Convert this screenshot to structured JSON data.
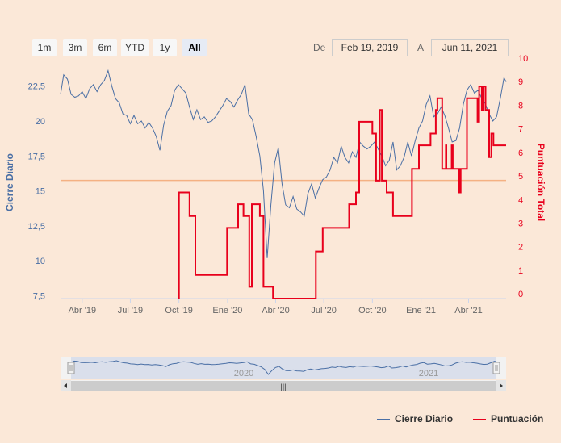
{
  "range_selector": {
    "buttons": [
      "1m",
      "3m",
      "6m",
      "YTD",
      "1y",
      "All"
    ],
    "active": "All",
    "from_label": "De",
    "from_value": "Feb 19, 2019",
    "to_label": "A",
    "to_value": "Jun 11, 2021"
  },
  "navigator": {
    "year_labels": [
      "2020",
      "2021"
    ],
    "scroll_grip": "|||"
  },
  "legend": {
    "items": [
      "Cierre Diario",
      "Puntuación"
    ]
  },
  "colors": {
    "price": "#4a6fa5",
    "score": "#e8001c",
    "reference_line": "#f4b183",
    "background": "#fbe8d8"
  },
  "chart_data": {
    "type": "line",
    "x_range": [
      "2019-02-19",
      "2021-06-11"
    ],
    "x_tick_labels": [
      "Abr '19",
      "Jul '19",
      "Oct '19",
      "Ene '20",
      "Abr '20",
      "Jul '20",
      "Oct '20",
      "Ene '21",
      "Abr '21"
    ],
    "x_tick_dates": [
      "2019-04-01",
      "2019-07-01",
      "2019-10-01",
      "2020-01-01",
      "2020-04-01",
      "2020-07-01",
      "2020-10-01",
      "2021-01-01",
      "2021-04-01"
    ],
    "y_left": {
      "label": "Cierre Diario",
      "range": [
        7.3,
        24.5
      ],
      "ticks": [
        7.5,
        10,
        12.5,
        15,
        17.5,
        20,
        22.5
      ],
      "tick_labels": [
        "7,5",
        "10",
        "12,5",
        "15",
        "17,5",
        "20",
        "22,5"
      ]
    },
    "y_right": {
      "label": "Puntuación Total",
      "range": [
        -0.2,
        10
      ],
      "ticks": [
        0,
        1,
        2,
        3,
        4,
        5,
        6,
        7,
        8,
        9,
        10
      ],
      "tick_labels": [
        "0",
        "1",
        "2",
        "3",
        "4",
        "5",
        "6",
        "7",
        "8",
        "9",
        "10"
      ]
    },
    "reference_line": {
      "axis": "left",
      "value": 15.75
    },
    "grid": false,
    "legend_position": "bottom-right",
    "series": [
      {
        "name": "Cierre Diario",
        "axis": "left",
        "points": [
          [
            "2019-02-19",
            21.9
          ],
          [
            "2019-02-25",
            23.3
          ],
          [
            "2019-03-04",
            23.0
          ],
          [
            "2019-03-11",
            21.9
          ],
          [
            "2019-03-18",
            21.7
          ],
          [
            "2019-03-25",
            21.8
          ],
          [
            "2019-04-01",
            22.1
          ],
          [
            "2019-04-08",
            21.6
          ],
          [
            "2019-04-15",
            22.3
          ],
          [
            "2019-04-22",
            22.6
          ],
          [
            "2019-04-29",
            22.1
          ],
          [
            "2019-05-06",
            22.6
          ],
          [
            "2019-05-13",
            22.9
          ],
          [
            "2019-05-20",
            23.6
          ],
          [
            "2019-05-27",
            22.5
          ],
          [
            "2019-06-03",
            21.6
          ],
          [
            "2019-06-10",
            21.3
          ],
          [
            "2019-06-17",
            20.5
          ],
          [
            "2019-06-24",
            20.4
          ],
          [
            "2019-07-01",
            19.8
          ],
          [
            "2019-07-08",
            20.4
          ],
          [
            "2019-07-15",
            19.8
          ],
          [
            "2019-07-22",
            20.0
          ],
          [
            "2019-07-29",
            19.5
          ],
          [
            "2019-08-05",
            19.9
          ],
          [
            "2019-08-12",
            19.5
          ],
          [
            "2019-08-19",
            18.9
          ],
          [
            "2019-08-26",
            17.9
          ],
          [
            "2019-09-02",
            19.7
          ],
          [
            "2019-09-09",
            20.7
          ],
          [
            "2019-09-16",
            21.1
          ],
          [
            "2019-09-23",
            22.2
          ],
          [
            "2019-09-30",
            22.6
          ],
          [
            "2019-10-07",
            22.3
          ],
          [
            "2019-10-14",
            22.0
          ],
          [
            "2019-10-21",
            21.0
          ],
          [
            "2019-10-28",
            20.1
          ],
          [
            "2019-11-04",
            20.8
          ],
          [
            "2019-11-11",
            20.1
          ],
          [
            "2019-11-18",
            20.3
          ],
          [
            "2019-11-25",
            19.9
          ],
          [
            "2019-12-02",
            20.0
          ],
          [
            "2019-12-09",
            20.3
          ],
          [
            "2019-12-16",
            20.7
          ],
          [
            "2019-12-23",
            21.1
          ],
          [
            "2019-12-30",
            21.6
          ],
          [
            "2020-01-06",
            21.4
          ],
          [
            "2020-01-13",
            21.0
          ],
          [
            "2020-01-20",
            21.5
          ],
          [
            "2020-01-27",
            21.9
          ],
          [
            "2020-02-03",
            22.6
          ],
          [
            "2020-02-10",
            20.5
          ],
          [
            "2020-02-17",
            20.1
          ],
          [
            "2020-02-24",
            18.9
          ],
          [
            "2020-03-02",
            17.5
          ],
          [
            "2020-03-09",
            15.0
          ],
          [
            "2020-03-16",
            10.2
          ],
          [
            "2020-03-23",
            14.0
          ],
          [
            "2020-03-30",
            17.0
          ],
          [
            "2020-04-06",
            18.1
          ],
          [
            "2020-04-13",
            15.5
          ],
          [
            "2020-04-20",
            14.0
          ],
          [
            "2020-04-27",
            13.8
          ],
          [
            "2020-05-04",
            14.6
          ],
          [
            "2020-05-11",
            13.7
          ],
          [
            "2020-05-18",
            13.5
          ],
          [
            "2020-05-25",
            13.2
          ],
          [
            "2020-06-01",
            14.8
          ],
          [
            "2020-06-08",
            15.5
          ],
          [
            "2020-06-15",
            14.5
          ],
          [
            "2020-06-22",
            15.2
          ],
          [
            "2020-06-29",
            15.8
          ],
          [
            "2020-07-06",
            16.0
          ],
          [
            "2020-07-13",
            16.5
          ],
          [
            "2020-07-20",
            17.4
          ],
          [
            "2020-07-27",
            17.0
          ],
          [
            "2020-08-03",
            18.2
          ],
          [
            "2020-08-10",
            17.4
          ],
          [
            "2020-08-17",
            17.0
          ],
          [
            "2020-08-24",
            17.8
          ],
          [
            "2020-08-31",
            17.4
          ],
          [
            "2020-09-07",
            18.5
          ],
          [
            "2020-09-14",
            18.2
          ],
          [
            "2020-09-21",
            18.0
          ],
          [
            "2020-09-28",
            18.2
          ],
          [
            "2020-10-05",
            18.5
          ],
          [
            "2020-10-12",
            18.0
          ],
          [
            "2020-10-19",
            17.5
          ],
          [
            "2020-10-26",
            16.8
          ],
          [
            "2020-11-02",
            17.2
          ],
          [
            "2020-11-09",
            18.5
          ],
          [
            "2020-11-16",
            16.5
          ],
          [
            "2020-11-23",
            16.8
          ],
          [
            "2020-11-30",
            17.4
          ],
          [
            "2020-12-07",
            18.5
          ],
          [
            "2020-12-14",
            17.5
          ],
          [
            "2020-12-21",
            18.6
          ],
          [
            "2020-12-28",
            19.5
          ],
          [
            "2021-01-04",
            20.0
          ],
          [
            "2021-01-11",
            21.2
          ],
          [
            "2021-01-18",
            21.8
          ],
          [
            "2021-01-25",
            20.3
          ],
          [
            "2021-02-01",
            20.5
          ],
          [
            "2021-02-08",
            21.0
          ],
          [
            "2021-02-15",
            20.4
          ],
          [
            "2021-02-22",
            19.5
          ],
          [
            "2021-03-01",
            18.5
          ],
          [
            "2021-03-08",
            18.6
          ],
          [
            "2021-03-15",
            19.5
          ],
          [
            "2021-03-22",
            21.2
          ],
          [
            "2021-03-29",
            22.2
          ],
          [
            "2021-04-05",
            22.6
          ],
          [
            "2021-04-12",
            22.0
          ],
          [
            "2021-04-19",
            22.2
          ],
          [
            "2021-04-26",
            21.6
          ],
          [
            "2021-05-03",
            21.2
          ],
          [
            "2021-05-10",
            20.5
          ],
          [
            "2021-05-17",
            20.0
          ],
          [
            "2021-05-24",
            20.3
          ],
          [
            "2021-05-31",
            21.6
          ],
          [
            "2021-06-07",
            23.1
          ],
          [
            "2021-06-11",
            22.8
          ]
        ]
      },
      {
        "name": "Puntuación",
        "axis": "right",
        "step": true,
        "points": [
          [
            "2019-10-01",
            4.3
          ],
          [
            "2019-10-21",
            3.3
          ],
          [
            "2019-11-01",
            0.8
          ],
          [
            "2019-12-31",
            2.8
          ],
          [
            "2020-01-21",
            3.8
          ],
          [
            "2020-01-31",
            3.3
          ],
          [
            "2020-02-11",
            0.3
          ],
          [
            "2020-02-16",
            3.8
          ],
          [
            "2020-03-02",
            3.3
          ],
          [
            "2020-03-09",
            0.3
          ],
          [
            "2020-03-27",
            -0.2
          ],
          [
            "2020-06-16",
            1.8
          ],
          [
            "2020-06-29",
            2.8
          ],
          [
            "2020-08-18",
            3.8
          ],
          [
            "2020-08-31",
            4.3
          ],
          [
            "2020-09-06",
            7.3
          ],
          [
            "2020-10-01",
            6.8
          ],
          [
            "2020-10-08",
            4.8
          ],
          [
            "2020-10-15",
            7.8
          ],
          [
            "2020-10-19",
            4.8
          ],
          [
            "2020-10-28",
            4.3
          ],
          [
            "2020-11-09",
            3.3
          ],
          [
            "2020-12-15",
            5.3
          ],
          [
            "2020-12-28",
            6.3
          ],
          [
            "2021-01-19",
            6.8
          ],
          [
            "2021-01-29",
            7.8
          ],
          [
            "2021-02-01",
            8.3
          ],
          [
            "2021-02-10",
            5.3
          ],
          [
            "2021-02-17",
            6.3
          ],
          [
            "2021-02-18",
            5.3
          ],
          [
            "2021-02-28",
            6.3
          ],
          [
            "2021-03-02",
            5.3
          ],
          [
            "2021-03-14",
            4.3
          ],
          [
            "2021-03-17",
            5.3
          ],
          [
            "2021-03-29",
            8.3
          ],
          [
            "2021-04-18",
            7.3
          ],
          [
            "2021-04-21",
            8.8
          ],
          [
            "2021-04-26",
            7.8
          ],
          [
            "2021-04-29",
            8.8
          ],
          [
            "2021-05-03",
            7.8
          ],
          [
            "2021-05-10",
            5.8
          ],
          [
            "2021-05-14",
            6.8
          ],
          [
            "2021-05-18",
            6.3
          ],
          [
            "2021-06-11",
            6.3
          ]
        ]
      }
    ]
  }
}
